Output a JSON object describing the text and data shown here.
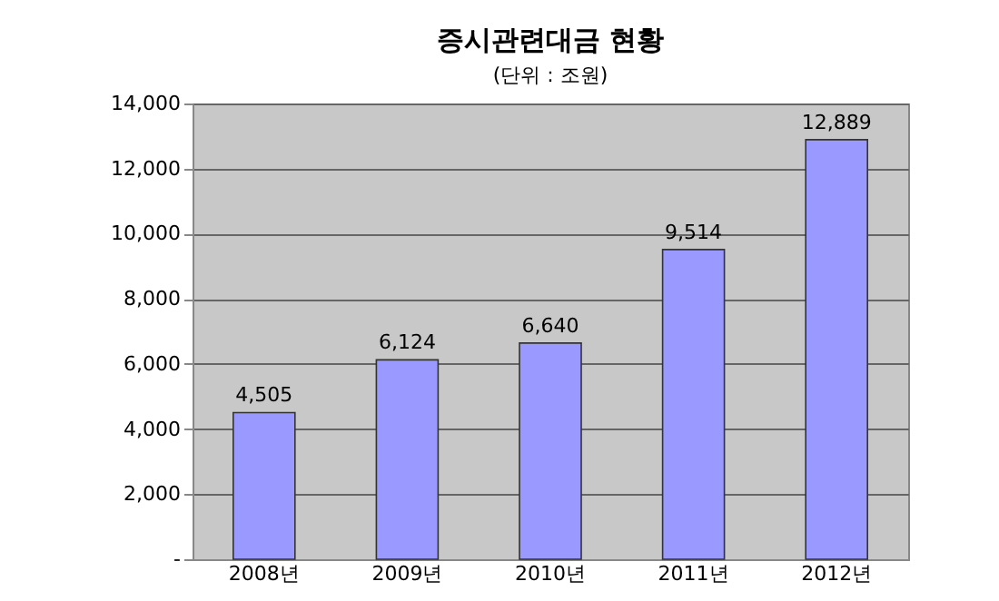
{
  "chart_data": {
    "type": "bar",
    "title": "증시관련대금 현황",
    "annotations": [
      "(단위 : 조원)"
    ],
    "categories": [
      "2008년",
      "2009년",
      "2010년",
      "2011년",
      "2012년"
    ],
    "values": [
      4505,
      6124,
      6640,
      9514,
      12889
    ],
    "value_labels": [
      "4,505",
      "6,124",
      "6,640",
      "9,514",
      "12,889"
    ],
    "color": "#9999ff",
    "ylim": [
      0,
      14000
    ],
    "yticks": [
      {
        "value": 0,
        "label": "-"
      },
      {
        "value": 2000,
        "label": "2,000"
      },
      {
        "value": 4000,
        "label": "4,000"
      },
      {
        "value": 6000,
        "label": "6,000"
      },
      {
        "value": 8000,
        "label": "8,000"
      },
      {
        "value": 10000,
        "label": "10,000"
      },
      {
        "value": 12000,
        "label": "12,000"
      },
      {
        "value": 14000,
        "label": "14,000"
      }
    ],
    "grid": "y"
  }
}
